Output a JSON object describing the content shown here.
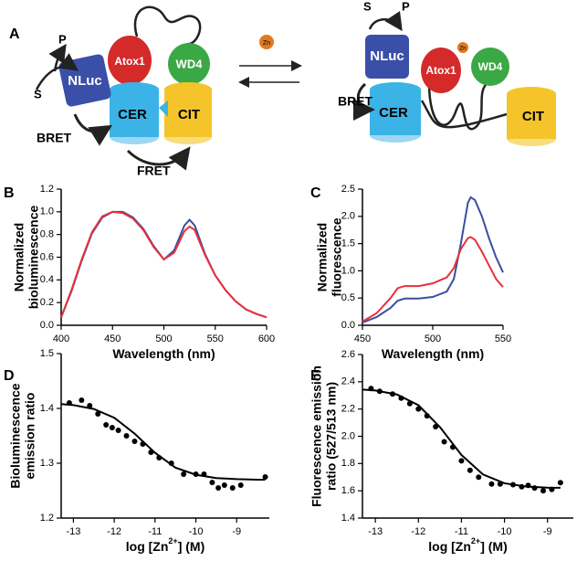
{
  "diagram": {
    "label": "A",
    "left": {
      "substrate": "S",
      "product": "P",
      "nluc": "NLuc",
      "atox1": "Atox1",
      "wd4": "WD4",
      "cer": "CER",
      "cit": "CIT",
      "bret": "BRET",
      "fret": "FRET"
    },
    "zinc": "Zn",
    "right": {
      "substrate": "S",
      "product": "P",
      "nluc": "NLuc",
      "atox1": "Atox1",
      "zinc": "Zn",
      "wd4": "WD4",
      "cer": "CER",
      "cit": "CIT",
      "bret": "BRET"
    }
  },
  "chart_data": [
    {
      "type": "line",
      "panel": "B",
      "ylabel": [
        "Normalized",
        "bioluminescence"
      ],
      "xlabel": [
        "Wavelength (nm)"
      ],
      "xlim": [
        400,
        600
      ],
      "xticks": [
        400,
        450,
        500,
        550,
        600
      ],
      "ylim": [
        0,
        1.2
      ],
      "yticks": [
        {
          "value": 0,
          "label": "0.0"
        },
        0.2,
        0.4,
        0.6,
        0.8,
        {
          "value": 1,
          "label": "1.0"
        },
        1.2
      ],
      "x": [
        400,
        410,
        420,
        430,
        440,
        450,
        460,
        470,
        480,
        490,
        500,
        510,
        520,
        525,
        530,
        540,
        550,
        560,
        570,
        580,
        590,
        600
      ],
      "series": [
        {
          "type": "line",
          "color": "#3a4fa0",
          "values": [
            0.07,
            0.3,
            0.57,
            0.81,
            0.95,
            1.0,
            1.0,
            0.95,
            0.85,
            0.7,
            0.58,
            0.66,
            0.88,
            0.93,
            0.88,
            0.63,
            0.44,
            0.31,
            0.21,
            0.14,
            0.1,
            0.07
          ]
        },
        {
          "type": "line",
          "color": "#e8303a",
          "values": [
            0.07,
            0.31,
            0.58,
            0.82,
            0.96,
            1.0,
            0.99,
            0.94,
            0.84,
            0.69,
            0.58,
            0.64,
            0.83,
            0.87,
            0.84,
            0.62,
            0.44,
            0.31,
            0.21,
            0.14,
            0.1,
            0.07
          ]
        }
      ]
    },
    {
      "type": "line",
      "panel": "C",
      "ylabel": [
        "Normalized",
        "fluorescence"
      ],
      "xlabel": [
        "Wavelength (nm)"
      ],
      "xlim": [
        450,
        550
      ],
      "xticks": [
        450,
        500,
        550
      ],
      "ylim": [
        0,
        2.5
      ],
      "yticks": [
        {
          "value": 0,
          "label": "0.0"
        },
        0.5,
        {
          "value": 1,
          "label": "1.0"
        },
        1.5,
        {
          "value": 2,
          "label": "2.0"
        },
        2.5
      ],
      "x": [
        450,
        460,
        470,
        475,
        480,
        490,
        500,
        510,
        515,
        520,
        525,
        527,
        530,
        535,
        540,
        545,
        550
      ],
      "series": [
        {
          "type": "line",
          "color": "#3a4fa0",
          "values": [
            0.05,
            0.15,
            0.32,
            0.45,
            0.49,
            0.49,
            0.52,
            0.62,
            0.85,
            1.5,
            2.25,
            2.35,
            2.3,
            2.0,
            1.6,
            1.25,
            0.97
          ]
        },
        {
          "type": "line",
          "color": "#e8303a",
          "values": [
            0.07,
            0.22,
            0.5,
            0.68,
            0.72,
            0.72,
            0.77,
            0.88,
            1.05,
            1.4,
            1.6,
            1.62,
            1.57,
            1.35,
            1.1,
            0.85,
            0.7
          ]
        }
      ]
    },
    {
      "type": "scatter",
      "panel": "D",
      "ylabel": [
        "Bioluminescence",
        "emission ratio"
      ],
      "xlabel": [
        "log [Zn",
        "2+",
        "] (M)"
      ],
      "xlim": [
        -13.3,
        -8.2
      ],
      "xticks": [
        -13,
        -12,
        -11,
        -10,
        -9
      ],
      "ylim": [
        1.2,
        1.5
      ],
      "yticks": [
        1.2,
        1.3,
        1.4,
        1.5
      ],
      "series": [
        {
          "type": "scatter",
          "color": "#000000",
          "x": [
            -13.1,
            -12.8,
            -12.6,
            -12.4,
            -12.2,
            -12.05,
            -11.9,
            -11.7,
            -11.5,
            -11.3,
            -11.1,
            -10.9,
            -10.6,
            -10.3,
            -10.0,
            -9.8,
            -9.6,
            -9.45,
            -9.3,
            -9.1,
            -8.9,
            -8.3
          ],
          "values": [
            1.41,
            1.415,
            1.405,
            1.39,
            1.37,
            1.365,
            1.36,
            1.35,
            1.34,
            1.335,
            1.32,
            1.31,
            1.3,
            1.28,
            1.28,
            1.28,
            1.265,
            1.255,
            1.26,
            1.255,
            1.26,
            1.275
          ]
        },
        {
          "type": "line",
          "color": "#000000",
          "x": [
            -13.3,
            -13,
            -12.5,
            -12,
            -11.5,
            -11,
            -10.5,
            -10,
            -9.5,
            -9,
            -8.5,
            -8.3
          ],
          "values": [
            1.408,
            1.406,
            1.399,
            1.383,
            1.354,
            1.319,
            1.292,
            1.279,
            1.273,
            1.271,
            1.27,
            1.27
          ]
        }
      ]
    },
    {
      "type": "scatter",
      "panel": "E",
      "ylabel": [
        "Fluorescence emission",
        "ratio (527/513 nm)"
      ],
      "xlabel": [
        "log [Zn",
        "2+",
        "] (M)"
      ],
      "xlim": [
        -13.3,
        -8.4
      ],
      "xticks": [
        -13,
        -12,
        -11,
        -10,
        -9
      ],
      "ylim": [
        1.4,
        2.6
      ],
      "yticks": [
        1.4,
        1.6,
        1.8,
        {
          "value": 2,
          "label": "2.0"
        },
        2.2,
        2.4,
        2.6
      ],
      "series": [
        {
          "type": "scatter",
          "color": "#000000",
          "x": [
            -13.1,
            -12.9,
            -12.6,
            -12.4,
            -12.2,
            -12.0,
            -11.8,
            -11.6,
            -11.4,
            -11.2,
            -11.0,
            -10.8,
            -10.6,
            -10.3,
            -10.1,
            -9.8,
            -9.6,
            -9.45,
            -9.3,
            -9.1,
            -8.9,
            -8.7
          ],
          "values": [
            2.35,
            2.33,
            2.31,
            2.28,
            2.24,
            2.2,
            2.15,
            2.07,
            1.96,
            1.92,
            1.82,
            1.75,
            1.7,
            1.65,
            1.65,
            1.645,
            1.63,
            1.64,
            1.62,
            1.6,
            1.61,
            1.66
          ]
        },
        {
          "type": "line",
          "color": "#000000",
          "x": [
            -13.3,
            -13,
            -12.5,
            -12,
            -11.5,
            -11,
            -10.5,
            -10,
            -9.5,
            -9,
            -8.7
          ],
          "values": [
            2.343,
            2.336,
            2.307,
            2.228,
            2.068,
            1.863,
            1.72,
            1.655,
            1.631,
            1.623,
            1.622
          ]
        }
      ]
    }
  ]
}
